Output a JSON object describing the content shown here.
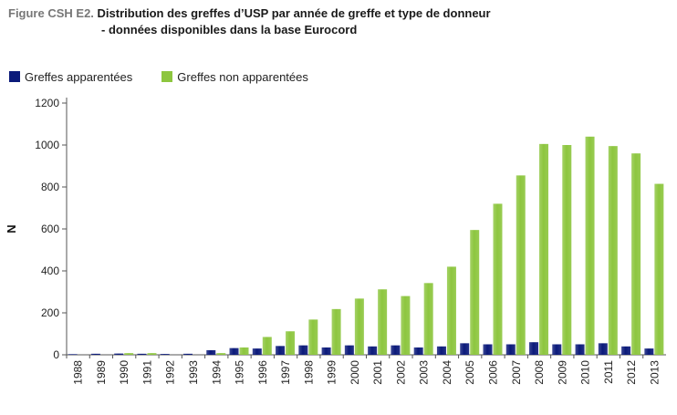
{
  "figure": {
    "label": "Figure CSH E2.",
    "title_line1": "Distribution des greffes d’USP par année de greffe et type de donneur",
    "title_line2": "- données disponibles dans la base Eurocord"
  },
  "colors": {
    "related": "#0b1a7a",
    "unrelated": "#8dc63f"
  },
  "chart_data": {
    "type": "bar",
    "title": "Distribution des greffes d’USP par année de greffe et type de donneur - données disponibles dans la base Eurocord",
    "ylabel": "N",
    "xlabel": "",
    "ylim": [
      0,
      1200
    ],
    "yticks": [
      0,
      200,
      400,
      600,
      800,
      1000,
      1200
    ],
    "grid": false,
    "legend_position": "top-left",
    "categories": [
      "1988",
      "1989",
      "1990",
      "1991",
      "1992",
      "1993",
      "1994",
      "1995",
      "1996",
      "1997",
      "1998",
      "1999",
      "2000",
      "2001",
      "2002",
      "2003",
      "2004",
      "2005",
      "2006",
      "2007",
      "2008",
      "2009",
      "2010",
      "2011",
      "2012",
      "2013"
    ],
    "series": [
      {
        "name": "Greffes apparentées",
        "color": "#0b1a7a",
        "values": [
          3,
          5,
          6,
          5,
          4,
          5,
          22,
          32,
          30,
          42,
          45,
          35,
          45,
          40,
          45,
          35,
          40,
          55,
          50,
          50,
          60,
          50,
          50,
          55,
          40,
          30
        ]
      },
      {
        "name": "Greffes non apparentées",
        "color": "#8dc63f",
        "values": [
          0,
          0,
          8,
          8,
          0,
          0,
          8,
          35,
          85,
          112,
          168,
          218,
          268,
          312,
          280,
          342,
          420,
          595,
          720,
          855,
          1005,
          1000,
          1040,
          995,
          960,
          815
        ]
      }
    ]
  }
}
